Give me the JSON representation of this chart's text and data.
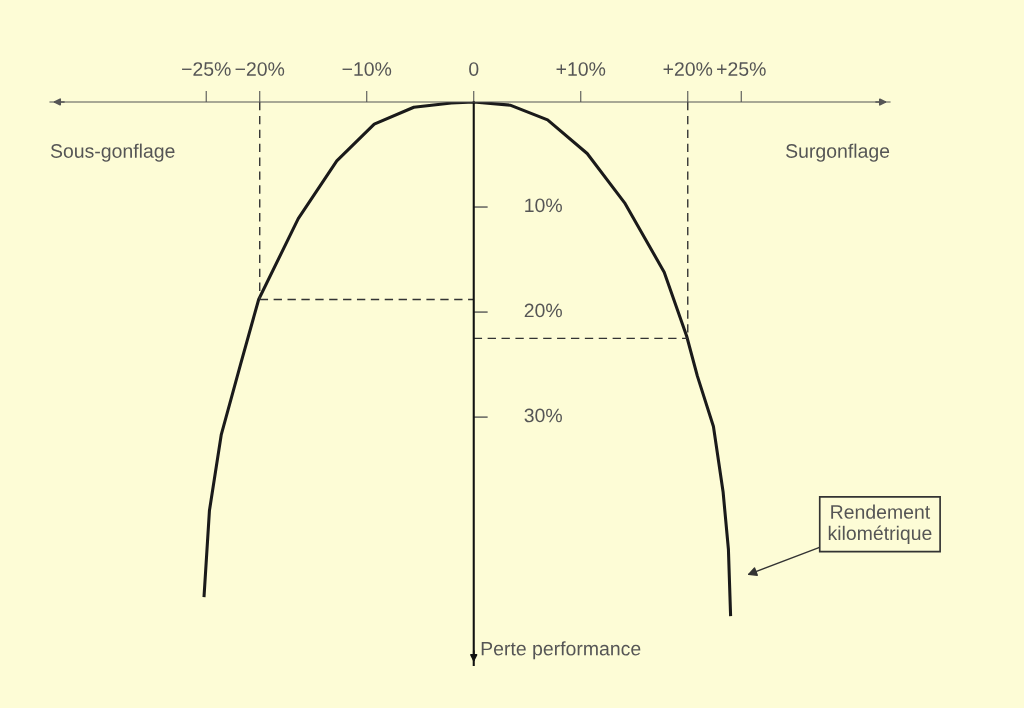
{
  "chart_data": {
    "type": "line",
    "xlabel": null,
    "ylabel": "Perte performance",
    "xlim": [
      -39.6,
      38.9
    ],
    "ylim": [
      53.6,
      0
    ],
    "xticks": [
      {
        "value": -25,
        "label": "−25%"
      },
      {
        "value": -20,
        "label": "−20%"
      },
      {
        "value": -10,
        "label": "−10%"
      },
      0,
      {
        "value": 10,
        "label": "+10%"
      },
      {
        "value": 20,
        "label": "+20%"
      },
      {
        "value": 25,
        "label": "+25%"
      }
    ],
    "yticks": [
      {
        "value": 10,
        "label": "10%"
      },
      {
        "value": 20,
        "label": "20%"
      },
      {
        "value": 30,
        "label": "30%"
      }
    ],
    "legend": false,
    "marker": "none",
    "series": [
      {
        "color": "#1a1a1a",
        "line_style": "solid",
        "x": [
          -25.2,
          -24.7,
          -23.6,
          -21.8,
          -20.1,
          -16.4,
          -12.8,
          -9.3,
          -5.6,
          -2.1,
          0,
          3.4,
          6.9,
          10.6,
          14.1,
          17.8,
          19.9,
          20.9,
          22.4,
          23.3,
          23.8,
          24.0
        ],
        "values": [
          47,
          38.9,
          31.7,
          25,
          18.8,
          11.1,
          5.6,
          2.1,
          0.5,
          0.1,
          0,
          0.3,
          1.7,
          4.9,
          9.6,
          16.2,
          22.3,
          26.1,
          30.9,
          37.1,
          42.6,
          48.8
        ]
      },
      {
        "color": "#333333",
        "line_style": "dashed",
        "x": [
          -20,
          -20
        ],
        "values": [
          0,
          18.8
        ]
      },
      {
        "color": "#333333",
        "line_style": "dashed",
        "x": [
          -20,
          0
        ],
        "values": [
          18.8,
          18.8
        ]
      },
      {
        "color": "#333333",
        "line_style": "dashed",
        "x": [
          20,
          20
        ],
        "values": [
          0,
          22.5
        ]
      },
      {
        "color": "#333333",
        "line_style": "dashed",
        "x": [
          0,
          20
        ],
        "values": [
          22.5,
          22.5
        ]
      }
    ],
    "annotations": [
      "Sous-gonflage",
      "Surgonflage",
      "Rendement\nkilométrique"
    ]
  }
}
